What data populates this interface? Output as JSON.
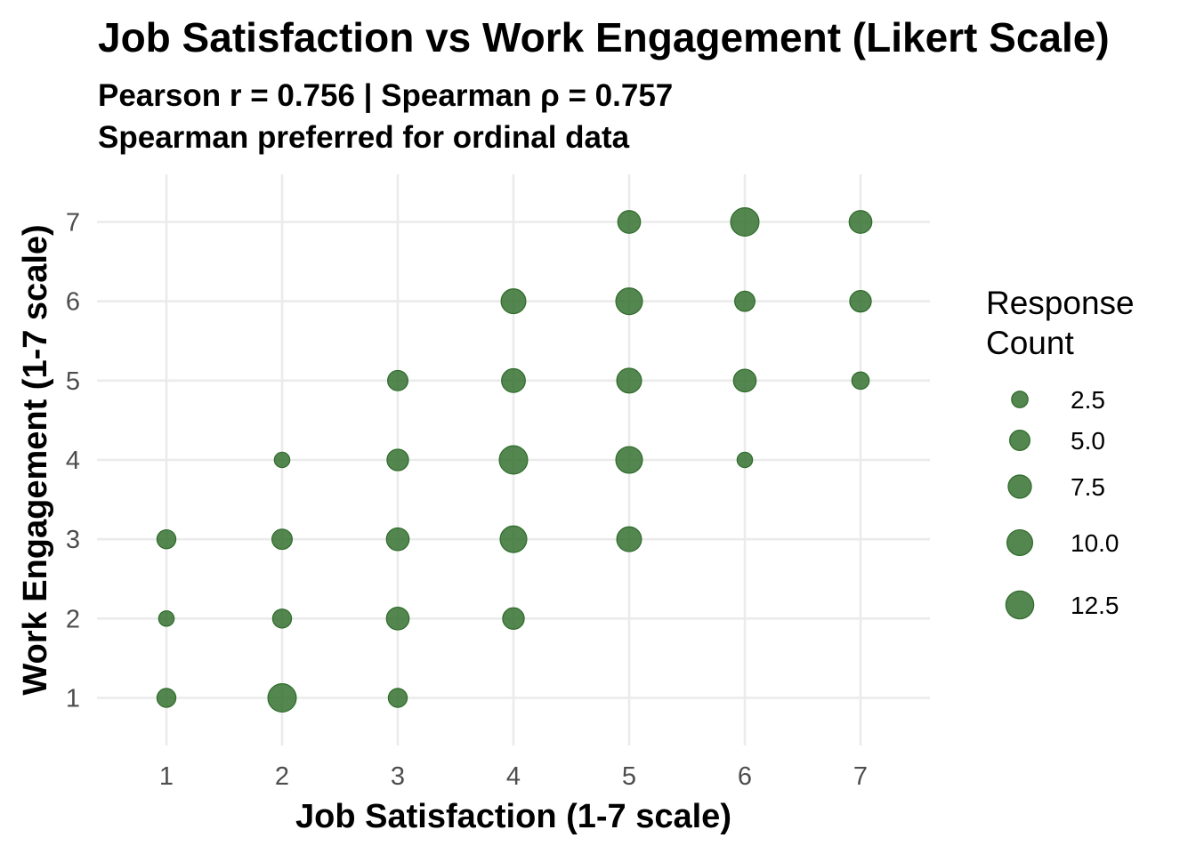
{
  "chart_data": {
    "type": "scatter",
    "title": "Job Satisfaction vs Work Engagement (Likert Scale)",
    "subtitle_lines": [
      "Pearson r = 0.756 | Spearman ρ = 0.757",
      "Spearman preferred for ordinal data"
    ],
    "xlabel": "Job Satisfaction (1-7 scale)",
    "ylabel": "Work Engagement (1-7 scale)",
    "xlim": [
      0.4,
      7.6
    ],
    "ylim": [
      0.4,
      7.6
    ],
    "x_ticks": [
      1,
      2,
      3,
      4,
      5,
      6,
      7
    ],
    "y_ticks": [
      1,
      2,
      3,
      4,
      5,
      6,
      7
    ],
    "grid": true,
    "marker_color": "#2e6b2a",
    "legend": {
      "title_lines": [
        "Response",
        "Count"
      ],
      "placement": "right",
      "entries": [
        {
          "label": "2.5",
          "size": 2.5
        },
        {
          "label": "5.0",
          "size": 5.0
        },
        {
          "label": "7.5",
          "size": 7.5
        },
        {
          "label": "10.0",
          "size": 10.0
        },
        {
          "label": "12.5",
          "size": 12.5
        }
      ]
    },
    "points": [
      {
        "x": 1,
        "y": 1,
        "count": 4
      },
      {
        "x": 1,
        "y": 2,
        "count": 2
      },
      {
        "x": 1,
        "y": 3,
        "count": 4
      },
      {
        "x": 2,
        "y": 1,
        "count": 13
      },
      {
        "x": 2,
        "y": 2,
        "count": 4
      },
      {
        "x": 2,
        "y": 3,
        "count": 5
      },
      {
        "x": 2,
        "y": 4,
        "count": 2
      },
      {
        "x": 3,
        "y": 1,
        "count": 4
      },
      {
        "x": 3,
        "y": 2,
        "count": 7
      },
      {
        "x": 3,
        "y": 3,
        "count": 7
      },
      {
        "x": 3,
        "y": 4,
        "count": 6
      },
      {
        "x": 3,
        "y": 5,
        "count": 5
      },
      {
        "x": 4,
        "y": 2,
        "count": 6
      },
      {
        "x": 4,
        "y": 3,
        "count": 11
      },
      {
        "x": 4,
        "y": 4,
        "count": 13
      },
      {
        "x": 4,
        "y": 5,
        "count": 8
      },
      {
        "x": 4,
        "y": 6,
        "count": 9
      },
      {
        "x": 5,
        "y": 3,
        "count": 9
      },
      {
        "x": 5,
        "y": 4,
        "count": 11
      },
      {
        "x": 5,
        "y": 5,
        "count": 9
      },
      {
        "x": 5,
        "y": 6,
        "count": 11
      },
      {
        "x": 5,
        "y": 7,
        "count": 7
      },
      {
        "x": 6,
        "y": 4,
        "count": 2
      },
      {
        "x": 6,
        "y": 5,
        "count": 7
      },
      {
        "x": 6,
        "y": 6,
        "count": 5
      },
      {
        "x": 6,
        "y": 7,
        "count": 13
      },
      {
        "x": 7,
        "y": 5,
        "count": 3
      },
      {
        "x": 7,
        "y": 6,
        "count": 6
      },
      {
        "x": 7,
        "y": 7,
        "count": 7
      }
    ]
  }
}
